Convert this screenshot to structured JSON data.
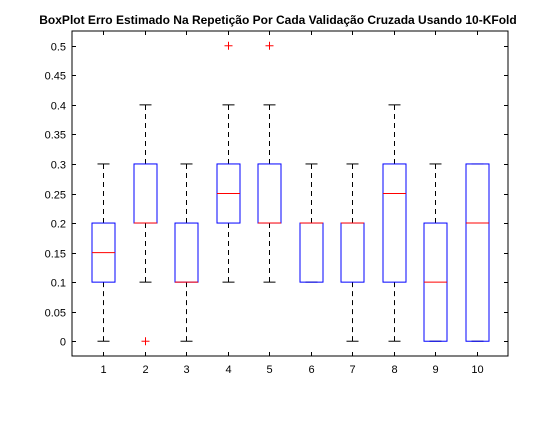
{
  "chart_data": {
    "type": "boxplot",
    "title": "BoxPlot Erro Estimado Na Repetição Por Cada Validação Cruzada Usando 10-KFold",
    "xlabel": "",
    "ylabel": "",
    "categories": [
      "1",
      "2",
      "3",
      "4",
      "5",
      "6",
      "7",
      "8",
      "9",
      "10"
    ],
    "x_tick_labels": [
      "1",
      "2",
      "3",
      "4",
      "5",
      "6",
      "7",
      "8",
      "9",
      "10"
    ],
    "y_tick_labels": [
      "0",
      "0.05",
      "0.1",
      "0.15",
      "0.2",
      "0.25",
      "0.3",
      "0.35",
      "0.4",
      "0.45",
      "0.5"
    ],
    "ylim": [
      -0.025,
      0.525
    ],
    "grid": false,
    "boxes": [
      {
        "label": "1",
        "lower_whisker": 0.0,
        "q1": 0.1,
        "median": 0.15,
        "q3": 0.2,
        "upper_whisker": 0.3,
        "outliers": []
      },
      {
        "label": "2",
        "lower_whisker": 0.1,
        "q1": 0.2,
        "median": 0.2,
        "q3": 0.3,
        "upper_whisker": 0.4,
        "outliers": [
          0.0
        ]
      },
      {
        "label": "3",
        "lower_whisker": 0.0,
        "q1": 0.1,
        "median": 0.1,
        "q3": 0.2,
        "upper_whisker": 0.3,
        "outliers": []
      },
      {
        "label": "4",
        "lower_whisker": 0.1,
        "q1": 0.2,
        "median": 0.25,
        "q3": 0.3,
        "upper_whisker": 0.4,
        "outliers": [
          0.5
        ]
      },
      {
        "label": "5",
        "lower_whisker": 0.1,
        "q1": 0.2,
        "median": 0.2,
        "q3": 0.3,
        "upper_whisker": 0.4,
        "outliers": [
          0.5
        ]
      },
      {
        "label": "6",
        "lower_whisker": 0.1,
        "q1": 0.1,
        "median": 0.2,
        "q3": 0.2,
        "upper_whisker": 0.3,
        "outliers": []
      },
      {
        "label": "7",
        "lower_whisker": 0.0,
        "q1": 0.1,
        "median": 0.2,
        "q3": 0.2,
        "upper_whisker": 0.3,
        "outliers": []
      },
      {
        "label": "8",
        "lower_whisker": 0.0,
        "q1": 0.1,
        "median": 0.25,
        "q3": 0.3,
        "upper_whisker": 0.4,
        "outliers": []
      },
      {
        "label": "9",
        "lower_whisker": 0.0,
        "q1": 0.0,
        "median": 0.1,
        "q3": 0.2,
        "upper_whisker": 0.3,
        "outliers": []
      },
      {
        "label": "10",
        "lower_whisker": 0.0,
        "q1": 0.0,
        "median": 0.2,
        "q3": 0.3,
        "upper_whisker": 0.3,
        "outliers": []
      }
    ],
    "colors": {
      "box": "#0000ff",
      "median": "#ff0000",
      "whisker": "#000000",
      "outlier": "#ff0000",
      "axes": "#000000",
      "background": "#ffffff"
    }
  }
}
